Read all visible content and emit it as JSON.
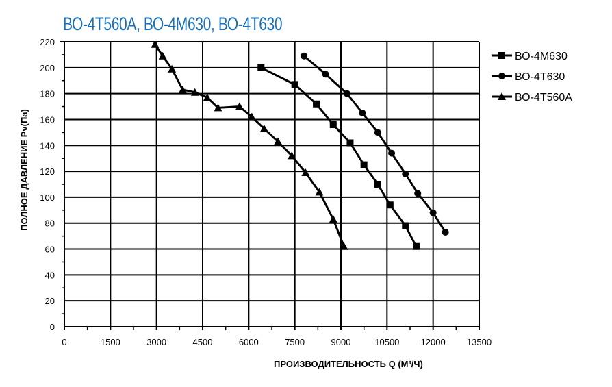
{
  "chart_data": {
    "type": "line",
    "title": "ВО-4Т560А, ВО-4М630, ВО-4Т630",
    "xlabel": "ПРОИЗВОДИТЕЛЬНОСТЬ   Q  (М³/Ч)",
    "ylabel": "ПОЛНОЕ ДАВЛЕНИЕ   Pv(Па)",
    "xlim": [
      0,
      13500
    ],
    "ylim": [
      0,
      220
    ],
    "xticks": [
      0,
      1500,
      3000,
      4500,
      6000,
      7500,
      9000,
      10500,
      12000,
      13500
    ],
    "yticks": [
      0,
      20,
      40,
      60,
      80,
      100,
      120,
      140,
      160,
      180,
      200,
      220
    ],
    "grid": true,
    "legend_position": "right",
    "series": [
      {
        "name": "ВО-4М630",
        "marker": "square",
        "x": [
          6400,
          7500,
          8200,
          8750,
          9300,
          9750,
          10200,
          10600,
          11100,
          11450
        ],
        "y": [
          200,
          187,
          172,
          156,
          142,
          125,
          110,
          94,
          78,
          62
        ]
      },
      {
        "name": "ВО-4Т630",
        "marker": "circle",
        "x": [
          7800,
          8500,
          9200,
          9700,
          10200,
          10650,
          11100,
          11500,
          12000,
          12400
        ],
        "y": [
          209,
          195,
          180,
          165,
          150,
          134,
          118,
          103,
          88,
          73
        ]
      },
      {
        "name": "ВО-4Т560А",
        "marker": "triangle",
        "x": [
          2950,
          3200,
          3500,
          3850,
          4250,
          4650,
          5000,
          5700,
          6100,
          6500,
          6950,
          7400,
          7850,
          8300,
          8750,
          9100
        ],
        "y": [
          218,
          209,
          199,
          183,
          181,
          177,
          169,
          170,
          162,
          153,
          143,
          132,
          119,
          104,
          83,
          62
        ]
      }
    ],
    "colors": {
      "title": "#1a6fb5",
      "lines": "#000000"
    }
  }
}
